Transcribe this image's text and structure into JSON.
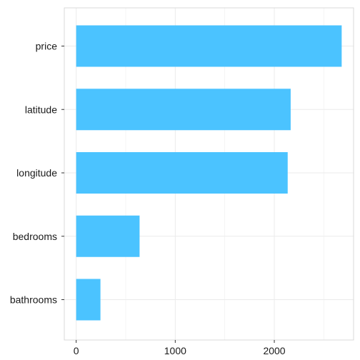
{
  "chart_data": {
    "type": "bar",
    "orientation": "horizontal",
    "title": "",
    "xlabel": "",
    "ylabel": "",
    "categories": [
      "price",
      "latitude",
      "longitude",
      "bedrooms",
      "bathrooms"
    ],
    "values": [
      2680,
      2165,
      2135,
      640,
      245
    ],
    "xlim": [
      -120,
      2800
    ],
    "xticks": [
      0,
      1000,
      2000
    ],
    "grid": true,
    "bar_color": "#4BC3FF",
    "grid_color": "#EBEBEB",
    "panel_border_color": "#D9D9D9"
  }
}
